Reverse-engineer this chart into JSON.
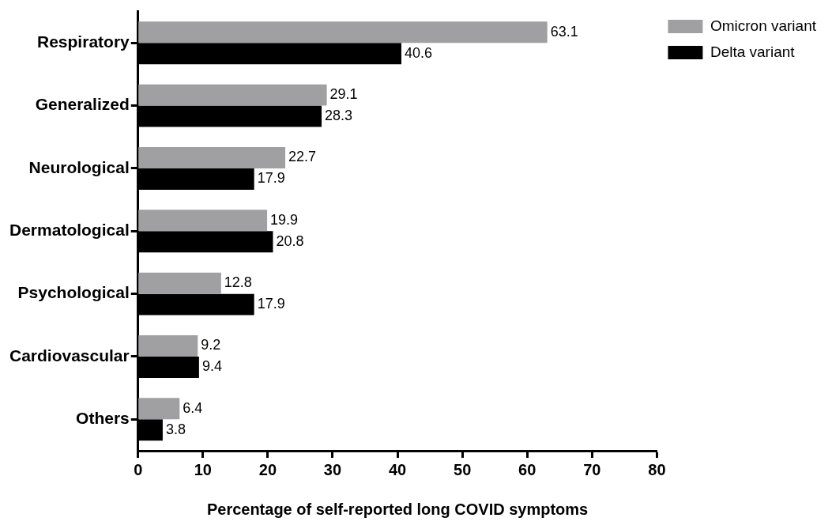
{
  "chart_data": {
    "type": "bar",
    "orientation": "horizontal",
    "xlabel": "Percentage of self-reported long COVID symptoms",
    "categories": [
      "Respiratory",
      "Generalized",
      "Neurological",
      "Dermatological",
      "Psychological",
      "Cardiovascular",
      "Others"
    ],
    "series": [
      {
        "name": "Omicron variant",
        "color": "#a0a0a2",
        "values": [
          63.1,
          29.1,
          22.7,
          19.9,
          12.8,
          9.2,
          6.4
        ]
      },
      {
        "name": "Delta variant",
        "color": "#000000",
        "values": [
          40.6,
          28.3,
          17.9,
          20.8,
          17.9,
          9.4,
          3.8
        ]
      }
    ],
    "xlim": [
      0,
      80
    ],
    "xticks": [
      0,
      10,
      20,
      30,
      40,
      50,
      60,
      70,
      80
    ],
    "grid": false,
    "legend": "top right",
    "data_labels": true
  }
}
